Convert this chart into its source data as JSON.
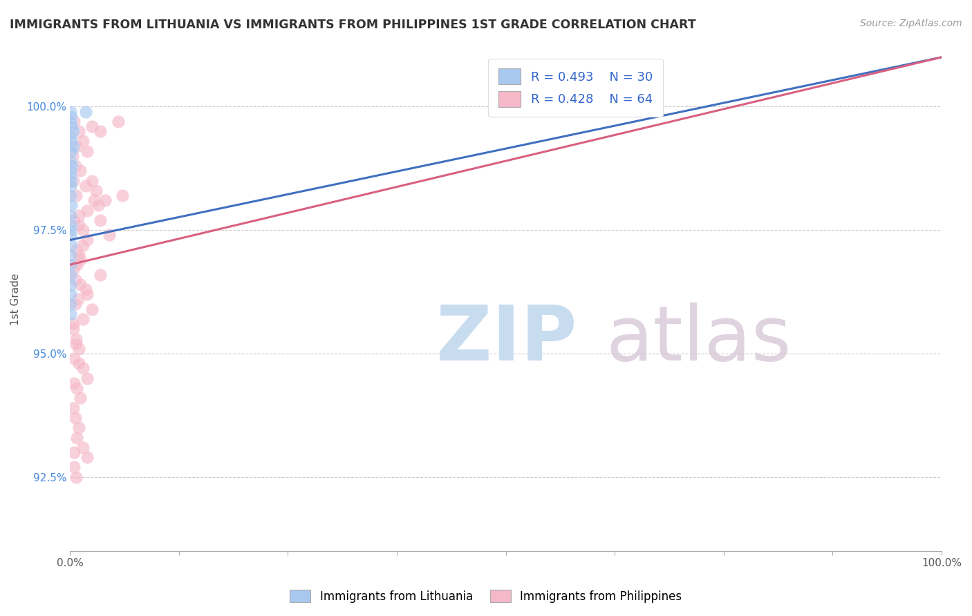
{
  "title": "IMMIGRANTS FROM LITHUANIA VS IMMIGRANTS FROM PHILIPPINES 1ST GRADE CORRELATION CHART",
  "source": "Source: ZipAtlas.com",
  "ylabel": "1st Grade",
  "xlim": [
    0.0,
    100.0
  ],
  "ylim": [
    91.0,
    101.2
  ],
  "ytick_vals": [
    92.5,
    95.0,
    97.5,
    100.0
  ],
  "legend_r1": "R = 0.493",
  "legend_n1": "N = 30",
  "legend_r2": "R = 0.428",
  "legend_n2": "N = 64",
  "legend_label1": "Immigrants from Lithuania",
  "legend_label2": "Immigrants from Philippines",
  "blue_color": "#A8C8F0",
  "pink_color": "#F5B8C8",
  "blue_line_color": "#4070C0",
  "pink_line_color": "#D86080",
  "blue_scatter": [
    [
      0.05,
      99.9
    ],
    [
      0.15,
      99.8
    ],
    [
      0.08,
      99.7
    ],
    [
      0.25,
      99.6
    ],
    [
      1.8,
      99.9
    ],
    [
      0.4,
      99.5
    ],
    [
      0.06,
      99.4
    ],
    [
      0.12,
      99.3
    ],
    [
      0.35,
      99.2
    ],
    [
      0.18,
      99.1
    ],
    [
      0.08,
      98.9
    ],
    [
      0.22,
      98.8
    ],
    [
      0.1,
      98.7
    ],
    [
      0.05,
      98.6
    ],
    [
      0.14,
      98.5
    ],
    [
      0.09,
      98.4
    ],
    [
      0.06,
      98.2
    ],
    [
      0.11,
      98.0
    ],
    [
      0.07,
      97.8
    ],
    [
      0.15,
      97.6
    ],
    [
      0.08,
      97.5
    ],
    [
      0.05,
      97.4
    ],
    [
      0.12,
      97.2
    ],
    [
      0.06,
      97.0
    ],
    [
      0.1,
      96.8
    ],
    [
      0.07,
      96.6
    ],
    [
      0.05,
      96.4
    ],
    [
      0.09,
      96.2
    ],
    [
      0.06,
      96.0
    ],
    [
      0.08,
      95.8
    ]
  ],
  "pink_scatter": [
    [
      0.5,
      99.7
    ],
    [
      1.0,
      99.5
    ],
    [
      2.5,
      99.6
    ],
    [
      3.5,
      99.5
    ],
    [
      5.5,
      99.7
    ],
    [
      1.5,
      99.3
    ],
    [
      0.8,
      99.2
    ],
    [
      2.0,
      99.1
    ],
    [
      0.3,
      99.0
    ],
    [
      0.6,
      98.8
    ],
    [
      1.2,
      98.7
    ],
    [
      0.4,
      98.5
    ],
    [
      1.8,
      98.4
    ],
    [
      0.7,
      98.2
    ],
    [
      2.8,
      98.1
    ],
    [
      3.2,
      98.0
    ],
    [
      1.0,
      97.8
    ],
    [
      0.5,
      97.7
    ],
    [
      1.5,
      97.5
    ],
    [
      2.0,
      97.3
    ],
    [
      0.8,
      97.1
    ],
    [
      1.2,
      96.9
    ],
    [
      0.4,
      96.7
    ],
    [
      0.6,
      96.5
    ],
    [
      1.8,
      96.3
    ],
    [
      0.9,
      96.1
    ],
    [
      2.5,
      95.9
    ],
    [
      1.5,
      95.7
    ],
    [
      0.4,
      95.5
    ],
    [
      0.7,
      95.3
    ],
    [
      1.0,
      95.1
    ],
    [
      0.5,
      94.9
    ],
    [
      1.5,
      94.7
    ],
    [
      2.0,
      94.5
    ],
    [
      0.8,
      94.3
    ],
    [
      1.2,
      94.1
    ],
    [
      0.4,
      93.9
    ],
    [
      0.6,
      93.7
    ],
    [
      1.0,
      93.5
    ],
    [
      0.8,
      93.3
    ],
    [
      1.5,
      93.1
    ],
    [
      2.0,
      92.9
    ],
    [
      0.5,
      92.7
    ],
    [
      0.7,
      92.5
    ],
    [
      1.0,
      97.6
    ],
    [
      1.5,
      97.2
    ],
    [
      0.8,
      96.8
    ],
    [
      1.2,
      96.4
    ],
    [
      0.6,
      96.0
    ],
    [
      0.4,
      95.6
    ],
    [
      0.7,
      95.2
    ],
    [
      1.0,
      94.8
    ],
    [
      0.5,
      94.4
    ],
    [
      2.5,
      98.5
    ],
    [
      3.0,
      98.3
    ],
    [
      4.0,
      98.1
    ],
    [
      2.0,
      97.9
    ],
    [
      3.5,
      97.7
    ],
    [
      6.0,
      98.2
    ],
    [
      4.5,
      97.4
    ],
    [
      3.5,
      96.6
    ],
    [
      0.5,
      93.0
    ],
    [
      2.0,
      96.2
    ],
    [
      1.0,
      97.0
    ]
  ],
  "blue_line": {
    "x0": 0.0,
    "y0": 97.3,
    "x1": 100.0,
    "y1": 101.0
  },
  "pink_line": {
    "x0": 0.0,
    "y0": 96.8,
    "x1": 100.0,
    "y1": 101.0
  },
  "xtick_positions": [
    0,
    12.5,
    25,
    37.5,
    50,
    62.5,
    75,
    87.5,
    100
  ],
  "background_color": "#FFFFFF",
  "grid_color": "#CCCCCC",
  "title_color": "#333333",
  "source_color": "#999999",
  "ytick_color": "#4488DD"
}
